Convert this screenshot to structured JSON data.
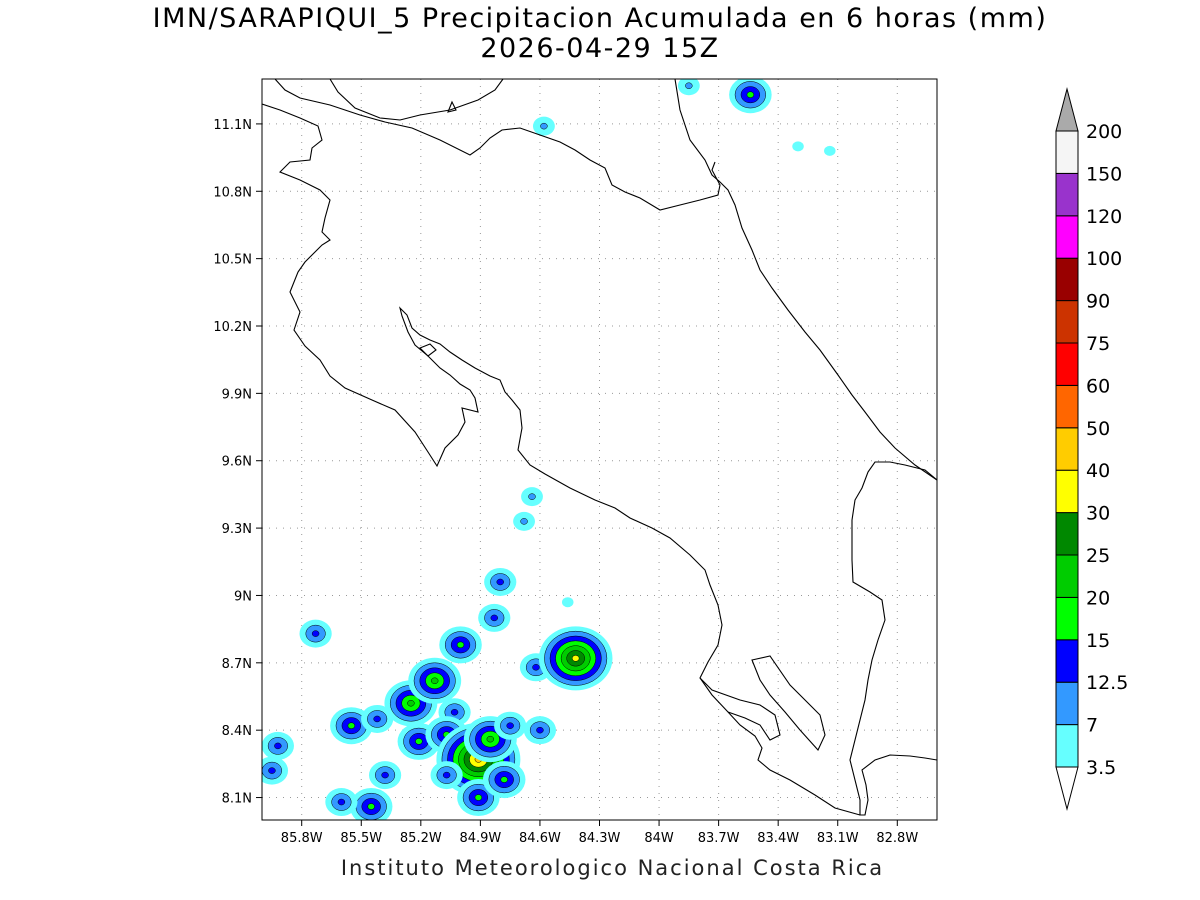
{
  "title": {
    "line1": "IMN/SARAPIQUI_5 Precipitacion Acumulada en 6 horas (mm)",
    "line2": "2026-04-29 15Z"
  },
  "footer": "Instituto Meteorologico Nacional Costa Rica",
  "map": {
    "lon_range": [
      -86.0,
      -82.6
    ],
    "lat_range": [
      8.0,
      11.3
    ],
    "grid": "dotted",
    "lat_ticks": [
      {
        "value": 11.1,
        "label": "11.1N"
      },
      {
        "value": 10.8,
        "label": "10.8N"
      },
      {
        "value": 10.5,
        "label": "10.5N"
      },
      {
        "value": 10.2,
        "label": "10.2N"
      },
      {
        "value": 9.9,
        "label": "9.9N"
      },
      {
        "value": 9.6,
        "label": "9.6N"
      },
      {
        "value": 9.3,
        "label": "9.3N"
      },
      {
        "value": 9.0,
        "label": "9N"
      },
      {
        "value": 8.7,
        "label": "8.7N"
      },
      {
        "value": 8.4,
        "label": "8.4N"
      },
      {
        "value": 8.1,
        "label": "8.1N"
      }
    ],
    "lon_ticks": [
      {
        "value": -85.8,
        "label": "85.8W"
      },
      {
        "value": -85.5,
        "label": "85.5W"
      },
      {
        "value": -85.2,
        "label": "85.2W"
      },
      {
        "value": -84.9,
        "label": "84.9W"
      },
      {
        "value": -84.6,
        "label": "84.6W"
      },
      {
        "value": -84.3,
        "label": "84.3W"
      },
      {
        "value": -84.0,
        "label": "84W"
      },
      {
        "value": -83.7,
        "label": "83.7W"
      },
      {
        "value": -83.4,
        "label": "83.4W"
      },
      {
        "value": -83.1,
        "label": "83.1W"
      },
      {
        "value": -82.8,
        "label": "82.8W"
      }
    ]
  },
  "colorbar": {
    "levels": [
      {
        "label": "3.5",
        "color": "#66ffff"
      },
      {
        "label": "7",
        "color": "#3399ff"
      },
      {
        "label": "12.5",
        "color": "#0000ff"
      },
      {
        "label": "15",
        "color": "#00ff00"
      },
      {
        "label": "20",
        "color": "#00cc00"
      },
      {
        "label": "25",
        "color": "#008800"
      },
      {
        "label": "30",
        "color": "#ffff00"
      },
      {
        "label": "40",
        "color": "#ffcc00"
      },
      {
        "label": "50",
        "color": "#ff6600"
      },
      {
        "label": "60",
        "color": "#ff0000"
      },
      {
        "label": "75",
        "color": "#cc3300"
      },
      {
        "label": "90",
        "color": "#990000"
      },
      {
        "label": "100",
        "color": "#ff00ff"
      },
      {
        "label": "120",
        "color": "#9933cc"
      },
      {
        "label": "150",
        "color": "#f5f5f5"
      },
      {
        "label": "200",
        "color": "#aaaaaa"
      }
    ],
    "bottom_arrow_color": "#ffffff",
    "top_arrow_color": "#aaaaaa"
  },
  "precip_cells": [
    {
      "lon": -85.92,
      "lat": 8.33,
      "peak": 12.5
    },
    {
      "lon": -85.95,
      "lat": 8.22,
      "peak": 12.5
    },
    {
      "lon": -85.55,
      "lat": 8.42,
      "peak": 15
    },
    {
      "lon": -85.42,
      "lat": 8.45,
      "peak": 12.5
    },
    {
      "lon": -85.25,
      "lat": 8.52,
      "peak": 20
    },
    {
      "lon": -85.13,
      "lat": 8.62,
      "peak": 20
    },
    {
      "lon": -85.03,
      "lat": 8.48,
      "peak": 12.5
    },
    {
      "lon": -85.21,
      "lat": 8.35,
      "peak": 15
    },
    {
      "lon": -85.07,
      "lat": 8.38,
      "peak": 15
    },
    {
      "lon": -84.91,
      "lat": 8.27,
      "peak": 40
    },
    {
      "lon": -84.85,
      "lat": 8.36,
      "peak": 20
    },
    {
      "lon": -85.07,
      "lat": 8.2,
      "peak": 12.5
    },
    {
      "lon": -84.91,
      "lat": 8.1,
      "peak": 15
    },
    {
      "lon": -84.78,
      "lat": 8.18,
      "peak": 15
    },
    {
      "lon": -84.75,
      "lat": 8.42,
      "peak": 12.5
    },
    {
      "lon": -84.6,
      "lat": 8.4,
      "peak": 12.5
    },
    {
      "lon": -84.62,
      "lat": 8.68,
      "peak": 12.5
    },
    {
      "lon": -84.42,
      "lat": 8.72,
      "peak": 30
    },
    {
      "lon": -85.0,
      "lat": 8.78,
      "peak": 15
    },
    {
      "lon": -84.83,
      "lat": 8.9,
      "peak": 12.5
    },
    {
      "lon": -84.8,
      "lat": 9.06,
      "peak": 12.5
    },
    {
      "lon": -85.38,
      "lat": 8.2,
      "peak": 12.5
    },
    {
      "lon": -85.45,
      "lat": 8.06,
      "peak": 15
    },
    {
      "lon": -85.6,
      "lat": 8.08,
      "peak": 12.5
    },
    {
      "lon": -85.73,
      "lat": 8.83,
      "peak": 12.5
    },
    {
      "lon": -84.64,
      "lat": 9.44,
      "peak": 7
    },
    {
      "lon": -84.68,
      "lat": 9.33,
      "peak": 7
    },
    {
      "lon": -84.46,
      "lat": 8.97,
      "peak": 3.5
    },
    {
      "lon": -83.54,
      "lat": 11.23,
      "peak": 15
    },
    {
      "lon": -83.85,
      "lat": 11.27,
      "peak": 7
    },
    {
      "lon": -84.58,
      "lat": 11.09,
      "peak": 7
    },
    {
      "lon": -83.3,
      "lat": 11.0,
      "peak": 3.5
    },
    {
      "lon": -83.14,
      "lat": 10.98,
      "peak": 3.5
    }
  ]
}
